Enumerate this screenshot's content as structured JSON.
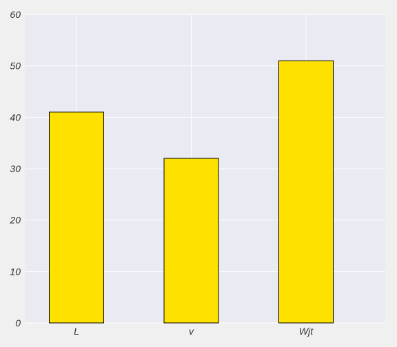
{
  "chart_data": {
    "type": "bar",
    "title": "",
    "xlabel": "",
    "ylabel": "",
    "categories": [
      "L",
      "v",
      "Wjt"
    ],
    "values": [
      41,
      32,
      51
    ],
    "ylim": [
      0,
      60
    ],
    "yticks": [
      0,
      10,
      20,
      30,
      40,
      50,
      60
    ],
    "grid": true,
    "legend": "none"
  },
  "colors": {
    "background": "#f0f0f0",
    "plot_background": "#eaeaf2",
    "grid": "#ffffff",
    "bar_fill": "#ffe100",
    "bar_edge": "#000000",
    "text": "#333333"
  }
}
